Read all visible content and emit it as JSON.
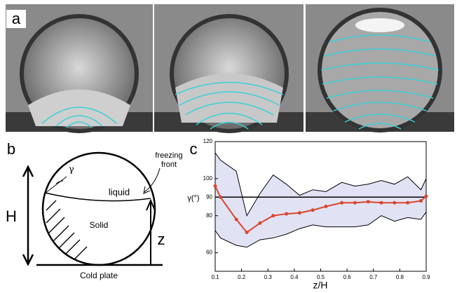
{
  "panel_labels": [
    "a",
    "b",
    "c"
  ],
  "diagram": {
    "gamma": "γ",
    "liquid": "liquid",
    "solid": "Solid",
    "height": "H",
    "z": "z",
    "front_line1": "freezing",
    "front_line2": "front",
    "plate": "Cold plate"
  },
  "chart_data": {
    "type": "line",
    "x": [
      0.1,
      0.12,
      0.18,
      0.22,
      0.27,
      0.32,
      0.37,
      0.42,
      0.47,
      0.52,
      0.58,
      0.63,
      0.68,
      0.73,
      0.78,
      0.83,
      0.88,
      0.9
    ],
    "values": [
      96,
      90,
      78,
      71,
      76,
      80,
      81,
      81.5,
      83,
      85,
      87,
      87,
      87.5,
      87,
      87,
      87,
      88,
      90.5
    ],
    "upper": [
      114,
      110,
      104,
      80,
      92,
      102,
      97,
      91,
      94,
      93,
      98,
      96,
      97,
      99,
      97,
      101,
      94,
      100
    ],
    "lower": [
      72,
      68,
      64,
      63,
      67,
      68,
      70,
      73,
      75,
      74,
      74,
      74,
      75,
      80,
      77,
      79,
      78,
      82
    ],
    "color": "#d9462b",
    "band_color": "#e2e2f5",
    "hline": 90,
    "xlim": [
      0.1,
      0.9
    ],
    "ylim": [
      50,
      120
    ],
    "xticks": [
      0.1,
      0.2,
      0.3,
      0.4,
      0.5,
      0.6,
      0.7,
      0.8,
      0.9
    ],
    "yticks": [
      60,
      80,
      90,
      100,
      120
    ],
    "xlabel": "z/H",
    "ylabel": "γ(°)"
  }
}
